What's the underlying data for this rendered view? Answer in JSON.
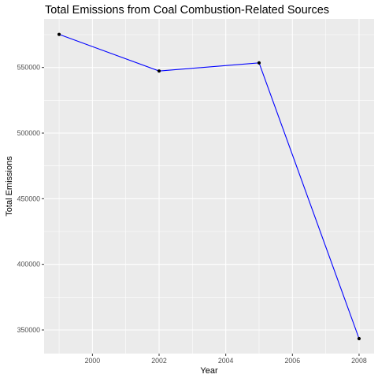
{
  "chart_data": {
    "type": "line",
    "title": "Total Emissions from Coal Combustion-Related Sources",
    "xlabel": "Year",
    "ylabel": "Total Emissions",
    "x": [
      1999,
      2002,
      2005,
      2008
    ],
    "y": [
      575200,
      547300,
      553500,
      343400
    ],
    "xlim": [
      1998.55,
      2008.45
    ],
    "ylim": [
      332000,
      587000
    ],
    "x_ticks": [
      2000,
      2002,
      2004,
      2006,
      2008
    ],
    "x_tick_labels": [
      "2000",
      "2002",
      "2004",
      "2006",
      "2008"
    ],
    "y_ticks": [
      350000,
      400000,
      450000,
      500000,
      550000
    ],
    "y_tick_labels": [
      "350000",
      "400000",
      "450000",
      "500000",
      "550000"
    ],
    "grid": true,
    "legend": "none",
    "colors": {
      "line": "#0000ff",
      "point": "#000000",
      "panel": "#ebebeb",
      "grid": "#ffffff"
    }
  }
}
